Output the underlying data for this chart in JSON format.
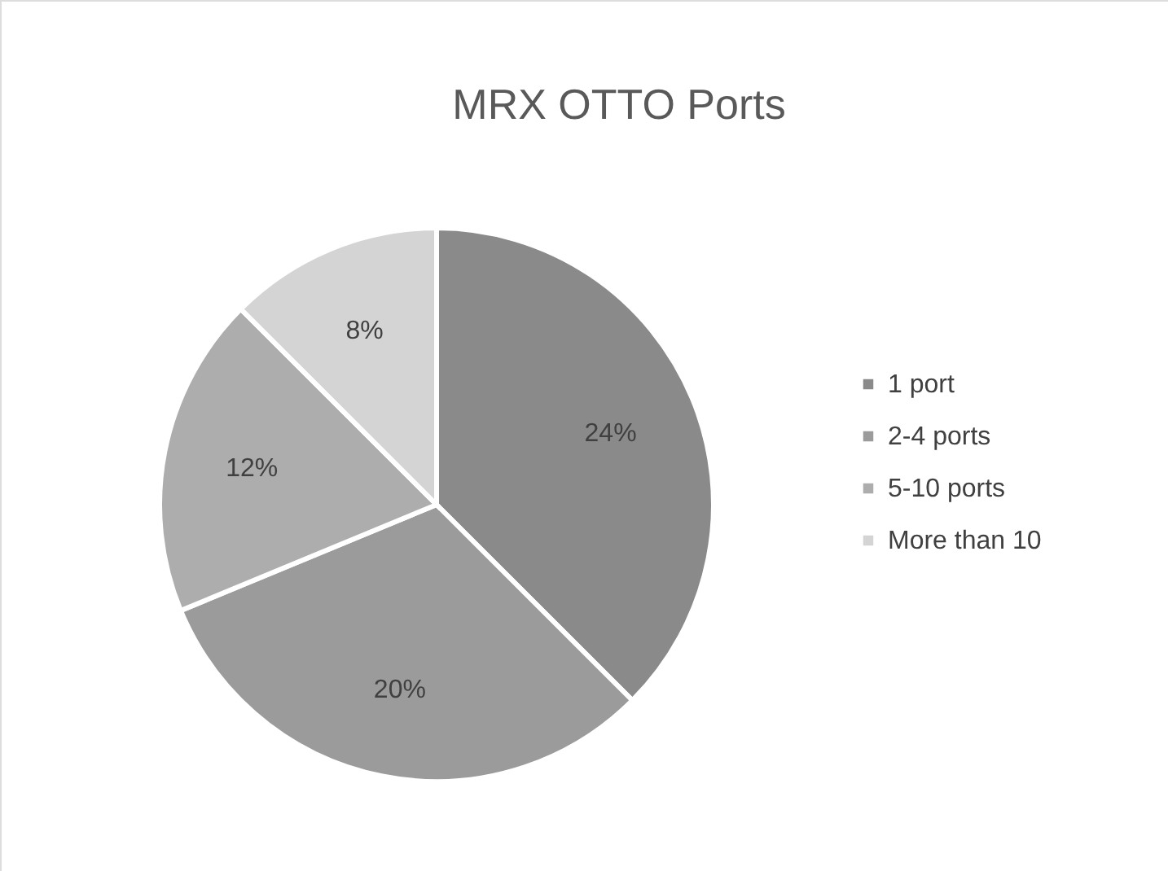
{
  "chart_data": {
    "type": "pie",
    "title": "MRX OTTO Ports",
    "categories": [
      "1 port",
      "2-4 ports",
      "5-10 ports",
      "More than 10"
    ],
    "values": [
      24,
      20,
      12,
      8
    ],
    "value_labels": [
      "24%",
      "20%",
      "12%",
      "8%"
    ],
    "colors": [
      "#8a8a8a",
      "#9b9b9b",
      "#adadad",
      "#d4d4d4"
    ],
    "legend": "right"
  }
}
